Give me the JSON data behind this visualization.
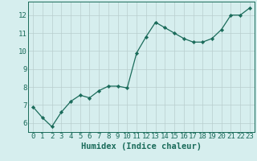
{
  "title": "",
  "xlabel": "Humidex (Indice chaleur)",
  "ylabel": "",
  "x_values": [
    0,
    1,
    2,
    3,
    4,
    5,
    6,
    7,
    8,
    9,
    10,
    11,
    12,
    13,
    14,
    15,
    16,
    17,
    18,
    19,
    20,
    21,
    22,
    23
  ],
  "y_values": [
    6.9,
    6.3,
    5.8,
    6.6,
    7.2,
    7.55,
    7.4,
    7.8,
    8.05,
    8.05,
    7.95,
    9.9,
    10.8,
    11.6,
    11.3,
    11.0,
    10.7,
    10.5,
    10.5,
    10.7,
    11.2,
    12.0,
    12.0,
    12.4
  ],
  "line_color": "#1a6b5a",
  "marker": "D",
  "marker_size": 2.2,
  "bg_color": "#d6eeee",
  "grid_color": "#b8cece",
  "ylim": [
    5.5,
    12.75
  ],
  "xlim": [
    -0.5,
    23.5
  ],
  "yticks": [
    6,
    7,
    8,
    9,
    10,
    11,
    12
  ],
  "xtick_labels": [
    "0",
    "1",
    "2",
    "3",
    "4",
    "5",
    "6",
    "7",
    "8",
    "9",
    "10",
    "11",
    "12",
    "13",
    "14",
    "15",
    "16",
    "17",
    "18",
    "19",
    "20",
    "21",
    "22",
    "23"
  ],
  "tick_color": "#1a6b5a",
  "xlabel_fontsize": 7.5,
  "tick_fontsize": 6.5
}
